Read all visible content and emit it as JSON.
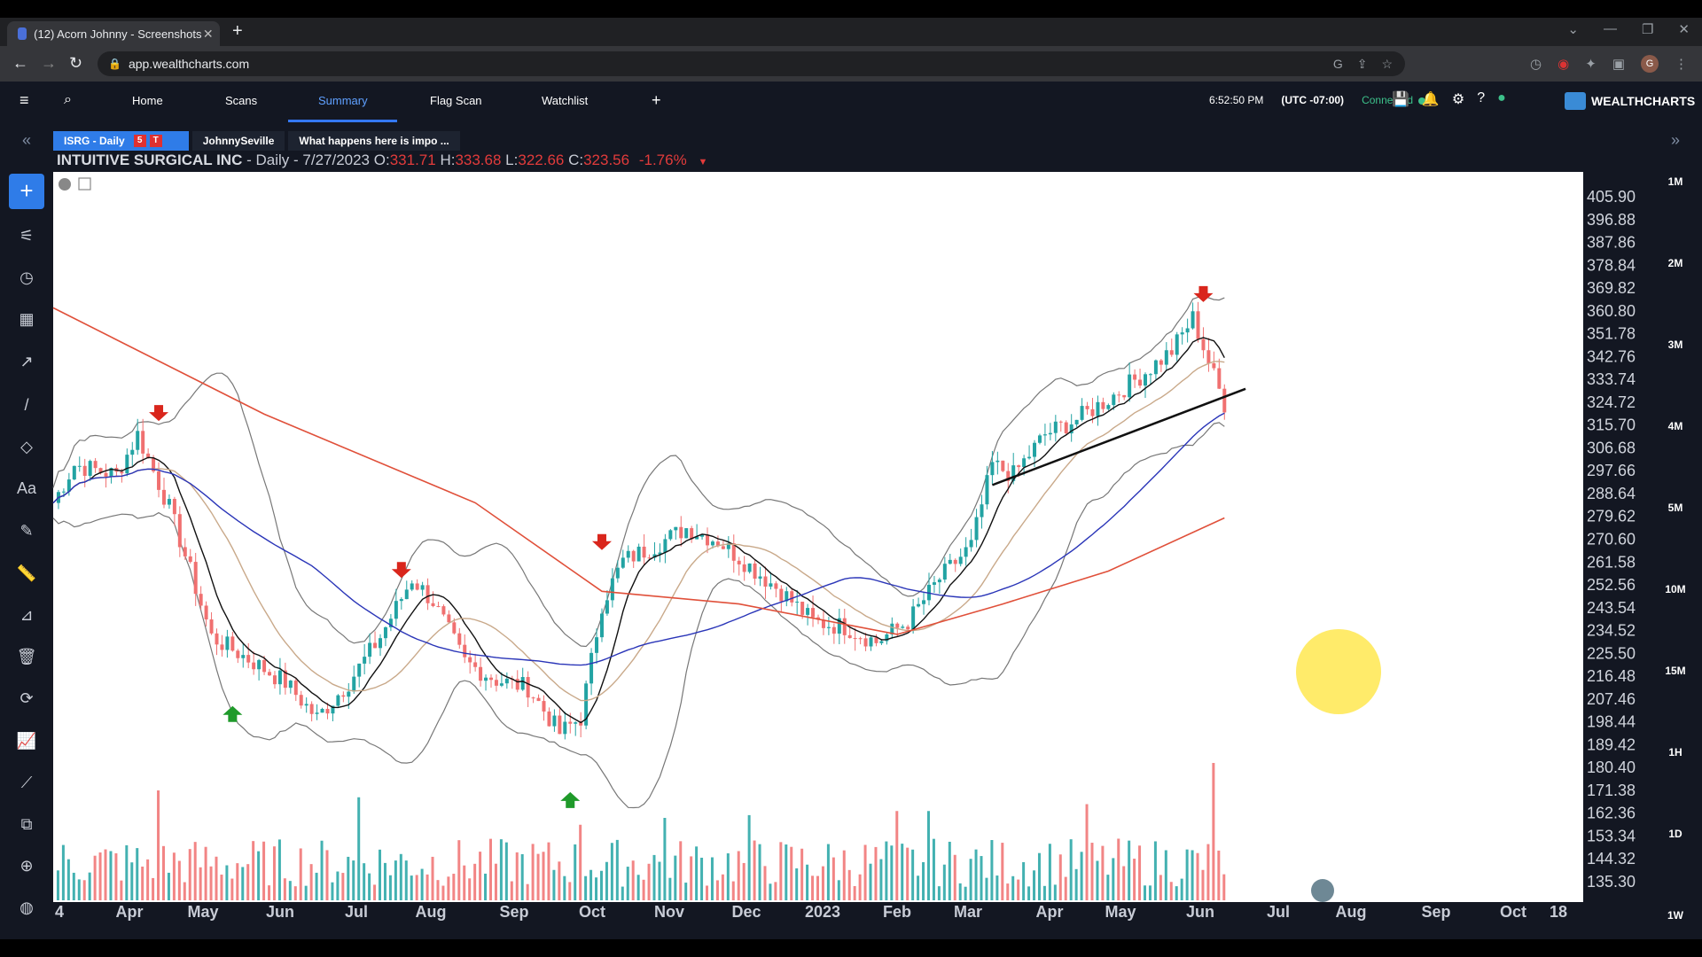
{
  "browser": {
    "tab_title": "(12) Acorn Johnny - Screenshots",
    "url": "app.wealthcharts.com",
    "profile_initial": "G"
  },
  "app_nav": {
    "items": [
      "Home",
      "Scans",
      "Summary",
      "Flag Scan",
      "Watchlist"
    ],
    "active": "Summary",
    "time": "6:52:50 PM",
    "timezone": "(UTC -07:00)",
    "status": "Connected",
    "brand": "WEALTHCHARTS"
  },
  "chart_tabs": {
    "active_label": "ISRG - Daily",
    "badge_5": "5",
    "badge_t": "T",
    "user": "JohnnySeville",
    "note": "What happens here is impo ..."
  },
  "legend": {
    "name": "INTUITIVE SURGICAL INC",
    "interval_date": " - Daily - 7/27/2023",
    "o_label": "O:",
    "o": "331.71",
    "h_label": "H:",
    "h": "333.68",
    "l_label": "L:",
    "l": "322.66",
    "c_label": "C:",
    "c": "323.56",
    "change": "-1.76%"
  },
  "timeframes": [
    "1M",
    "2M",
    "3M",
    "4M",
    "5M",
    "10M",
    "15M",
    "1H",
    "1D",
    "1W"
  ],
  "colors": {
    "up": "#22a3a3",
    "down": "#f07070",
    "sma_red": "#e0503a",
    "sma_blue": "#2a35b8",
    "sma_tan": "#c9a98a",
    "bollinger": "#777777",
    "accent": "#2f7ce8"
  },
  "chart_data": {
    "type": "candlestick",
    "title": "INTUITIVE SURGICAL INC - Daily",
    "y_ticks": [
      405.9,
      396.88,
      387.86,
      378.84,
      369.82,
      360.8,
      351.78,
      342.76,
      333.74,
      324.72,
      315.7,
      306.68,
      297.66,
      288.64,
      279.62,
      270.6,
      261.58,
      252.56,
      243.54,
      234.52,
      225.5,
      216.48,
      207.46,
      198.44,
      189.42,
      180.4,
      171.38,
      162.36,
      153.34,
      144.32,
      135.3
    ],
    "x_ticks": [
      "4",
      "Apr",
      "May",
      "Jun",
      "Jul",
      "Aug",
      "Sep",
      "Oct",
      "Nov",
      "Dec",
      "2023",
      "Feb",
      "Mar",
      "Apr",
      "May",
      "Jun",
      "Jul",
      "Aug",
      "Sep",
      "Oct",
      "18"
    ],
    "price_path": [
      {
        "t": 0,
        "p": 285
      },
      {
        "t": 4,
        "p": 300
      },
      {
        "t": 12,
        "p": 296
      },
      {
        "t": 16,
        "p": 312
      },
      {
        "t": 22,
        "p": 283
      },
      {
        "t": 26,
        "p": 258
      },
      {
        "t": 30,
        "p": 232
      },
      {
        "t": 38,
        "p": 222
      },
      {
        "t": 44,
        "p": 214
      },
      {
        "t": 50,
        "p": 200
      },
      {
        "t": 56,
        "p": 214
      },
      {
        "t": 62,
        "p": 232
      },
      {
        "t": 68,
        "p": 255
      },
      {
        "t": 72,
        "p": 246
      },
      {
        "t": 78,
        "p": 222
      },
      {
        "t": 84,
        "p": 215
      },
      {
        "t": 90,
        "p": 212
      },
      {
        "t": 96,
        "p": 194
      },
      {
        "t": 100,
        "p": 200
      },
      {
        "t": 104,
        "p": 245
      },
      {
        "t": 108,
        "p": 262
      },
      {
        "t": 114,
        "p": 268
      },
      {
        "t": 120,
        "p": 275
      },
      {
        "t": 126,
        "p": 270
      },
      {
        "t": 132,
        "p": 260
      },
      {
        "t": 138,
        "p": 250
      },
      {
        "t": 144,
        "p": 238
      },
      {
        "t": 150,
        "p": 236
      },
      {
        "t": 156,
        "p": 230
      },
      {
        "t": 162,
        "p": 238
      },
      {
        "t": 168,
        "p": 255
      },
      {
        "t": 174,
        "p": 268
      },
      {
        "t": 178,
        "p": 300
      },
      {
        "t": 182,
        "p": 296
      },
      {
        "t": 188,
        "p": 312
      },
      {
        "t": 194,
        "p": 318
      },
      {
        "t": 200,
        "p": 326
      },
      {
        "t": 206,
        "p": 335
      },
      {
        "t": 212,
        "p": 345
      },
      {
        "t": 216,
        "p": 358
      },
      {
        "t": 220,
        "p": 335
      },
      {
        "t": 222,
        "p": 324
      }
    ],
    "sma200": [
      [
        0,
        362
      ],
      [
        40,
        320
      ],
      [
        80,
        285
      ],
      [
        104,
        250
      ],
      [
        130,
        245
      ],
      [
        160,
        233
      ],
      [
        180,
        245
      ],
      [
        200,
        258
      ],
      [
        222,
        279
      ]
    ],
    "trendline": [
      [
        178,
        292
      ],
      [
        226,
        330
      ]
    ],
    "arrows": [
      {
        "t": 20,
        "p": 318,
        "dir": "down"
      },
      {
        "t": 66,
        "p": 256,
        "dir": "down"
      },
      {
        "t": 104,
        "p": 267,
        "dir": "down"
      },
      {
        "t": 218,
        "p": 365,
        "dir": "down"
      },
      {
        "t": 34,
        "p": 204,
        "dir": "up"
      },
      {
        "t": 98,
        "p": 170,
        "dir": "up"
      }
    ],
    "volume_spikes": [
      [
        20,
        0.8
      ],
      [
        58,
        0.75
      ],
      [
        100,
        0.55
      ],
      [
        116,
        0.6
      ],
      [
        132,
        0.62
      ],
      [
        160,
        0.65
      ],
      [
        166,
        0.65
      ],
      [
        196,
        0.7
      ],
      [
        220,
        1.0
      ]
    ]
  }
}
